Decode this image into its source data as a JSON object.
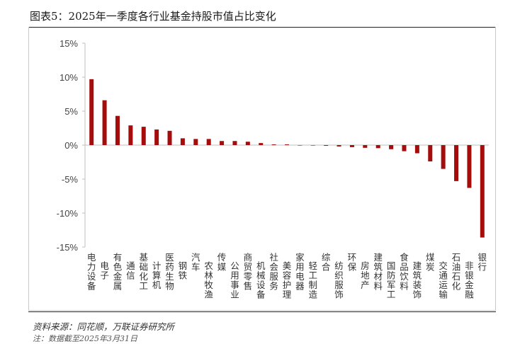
{
  "caption": "图表5：2025年一季度各行业基金持股市值占比变化",
  "source": "资料来源：同花顺，万联证券研究所",
  "note": "注：数据截至2025年3月31日",
  "colors": {
    "bar": "#a50d0d",
    "axis": "#bfbfbf"
  },
  "chart_data": {
    "type": "bar",
    "title": "",
    "xlabel": "",
    "ylabel": "",
    "ylim": [
      -15,
      15
    ],
    "yticks": [
      "15%",
      "10%",
      "5%",
      "0%",
      "-5%",
      "-10%",
      "-15%"
    ],
    "ytick_values": [
      15,
      10,
      5,
      0,
      -5,
      -10,
      -15
    ],
    "grid": false,
    "categories": [
      "电力设备",
      "电子",
      "有色金属",
      "通信",
      "基础化工",
      "计算机",
      "医药生物",
      "钢铁",
      "汽车",
      "农林牧渔",
      "传媒",
      "公用事业",
      "商贸零售",
      "机械设备",
      "社会服务",
      "美容护理",
      "家用电器",
      "轻工制造",
      "综合",
      "纺织服饰",
      "环保",
      "房地产",
      "建筑材料",
      "国防军工",
      "食品饮料",
      "建筑装饰",
      "煤炭",
      "交通运输",
      "石油石化",
      "非银金融",
      "银行"
    ],
    "values": [
      9.7,
      6.6,
      4.3,
      2.9,
      2.7,
      2.3,
      2.1,
      1.0,
      0.9,
      0.9,
      0.6,
      0.6,
      0.5,
      0.3,
      0.1,
      0.1,
      -0.05,
      -0.05,
      -0.1,
      -0.2,
      -0.3,
      -0.4,
      -0.45,
      -0.6,
      -0.9,
      -1.2,
      -2.4,
      -3.5,
      -5.3,
      -6.3,
      -13.6
    ]
  }
}
